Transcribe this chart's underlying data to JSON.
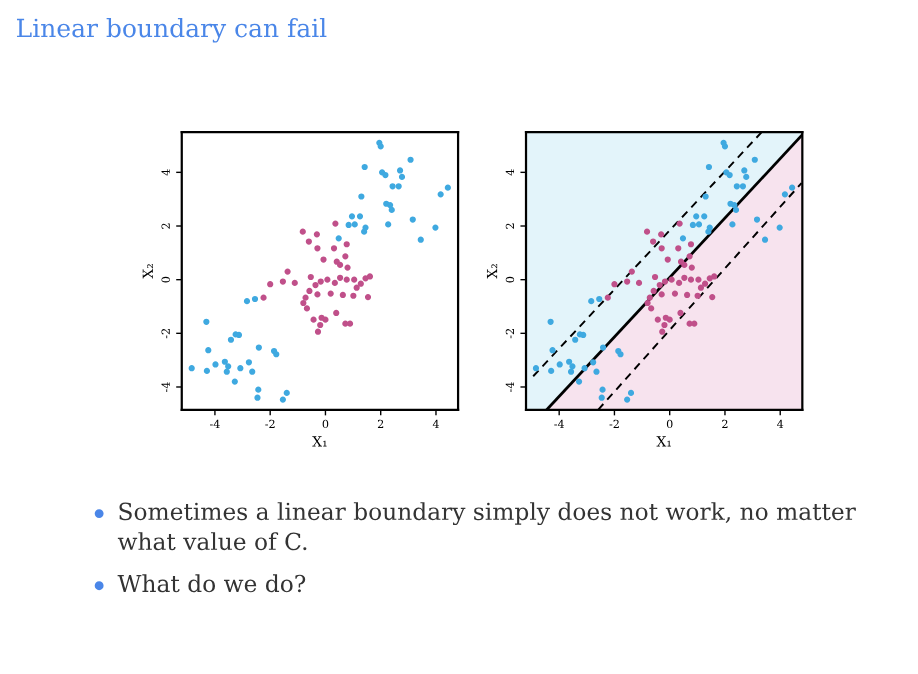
{
  "chart_data": [
    {
      "type": "scatter",
      "title": "Linear boundary can fail",
      "xlabel": "X₁",
      "ylabel": "X₂",
      "xlim": [
        -5.2,
        4.8
      ],
      "ylim": [
        -4.85,
        5.5
      ],
      "xticks": [
        -4,
        -2,
        0,
        2,
        4
      ],
      "yticks": [
        -4,
        -2,
        0,
        2,
        4
      ],
      "marker": "circle",
      "grid": false,
      "legend": false,
      "annotations": [
        "Sometimes a linear boundary simply does not work, no matter what value of C.",
        "What do we do?"
      ],
      "series": [
        {
          "color": "#3fa9e0",
          "x": [
            1.95,
            2.0,
            1.42,
            3.08,
            2.05,
            2.17,
            2.7,
            2.77,
            2.43,
            2.65,
            1.3,
            2.2,
            2.34,
            2.4,
            4.43,
            4.17,
            0.96,
            1.25,
            0.84,
            1.06,
            1.45,
            1.4,
            3.16,
            2.27,
            3.98,
            3.45,
            0.48,
            -4.31,
            -2.84,
            -2.55,
            -4.24,
            -3.42,
            -3.25,
            -3.13,
            -2.41,
            -1.86,
            -1.78,
            -4.84,
            -4.29,
            -3.98,
            -3.64,
            -3.52,
            -3.57,
            -3.28,
            -3.08,
            -2.77,
            -2.65,
            -2.43,
            -2.46,
            -1.54,
            -1.4
          ],
          "values": [
            5.1,
            4.97,
            4.2,
            4.47,
            4.0,
            3.9,
            4.07,
            3.83,
            3.48,
            3.48,
            3.1,
            2.83,
            2.78,
            2.6,
            3.43,
            3.18,
            2.36,
            2.36,
            2.04,
            2.06,
            1.94,
            1.79,
            2.24,
            2.06,
            1.94,
            1.49,
            1.54,
            -1.57,
            -0.8,
            -0.72,
            -2.63,
            -2.24,
            -2.04,
            -2.06,
            -2.53,
            -2.66,
            -2.78,
            -3.3,
            -3.4,
            -3.16,
            -3.06,
            -3.23,
            -3.43,
            -3.8,
            -3.3,
            -3.08,
            -3.43,
            -4.1,
            -4.4,
            -4.47,
            -4.22
          ]
        },
        {
          "color": "#c0508a",
          "x": [
            0.36,
            -0.82,
            -0.31,
            -0.6,
            0.31,
            0.77,
            -0.29,
            -0.07,
            0.41,
            0.53,
            0.72,
            0.8,
            -1.37,
            -1.54,
            -2.0,
            -2.24,
            -0.36,
            -0.17,
            0.07,
            0.34,
            0.53,
            0.77,
            1.04,
            1.28,
            1.61,
            1.45,
            -0.58,
            -0.72,
            -0.29,
            0.19,
            0.63,
            1.01,
            1.13,
            1.54,
            -0.8,
            -0.67,
            -0.43,
            -0.14,
            0.0,
            -0.27,
            -0.19,
            0.72,
            0.89,
            0.39,
            -0.53,
            -1.11
          ],
          "values": [
            2.09,
            1.79,
            1.69,
            1.42,
            1.17,
            1.32,
            1.17,
            0.75,
            0.67,
            0.55,
            0.87,
            0.45,
            0.3,
            -0.07,
            -0.17,
            -0.67,
            -0.2,
            -0.07,
            0.0,
            -0.12,
            0.07,
            0.0,
            0.0,
            -0.15,
            0.12,
            0.05,
            -0.42,
            -0.67,
            -0.55,
            -0.52,
            -0.57,
            -0.6,
            -0.3,
            -0.65,
            -0.87,
            -1.07,
            -1.49,
            -1.42,
            -1.49,
            -1.94,
            -1.69,
            -1.64,
            -1.64,
            -1.24,
            0.1,
            -0.12
          ]
        }
      ]
    },
    {
      "type": "scatter",
      "xlabel": "X₁",
      "ylabel": "X₂",
      "xlim": [
        -5.2,
        4.8
      ],
      "ylim": [
        -4.85,
        5.5
      ],
      "xticks": [
        -4,
        -2,
        0,
        2,
        4
      ],
      "yticks": [
        -4,
        -2,
        0,
        2,
        4
      ],
      "marker": "circle",
      "grid": false,
      "legend": false,
      "series": [
        {
          "color": "#3fa9e0",
          "x": [
            1.95,
            2.0,
            1.42,
            3.08,
            2.05,
            2.17,
            2.7,
            2.77,
            2.43,
            2.65,
            1.3,
            2.2,
            2.34,
            2.4,
            4.43,
            4.17,
            0.96,
            1.25,
            0.84,
            1.06,
            1.45,
            1.4,
            3.16,
            2.27,
            3.98,
            3.45,
            0.48,
            -4.31,
            -2.84,
            -2.55,
            -4.24,
            -3.42,
            -3.25,
            -3.13,
            -2.41,
            -1.86,
            -1.78,
            -4.84,
            -4.29,
            -3.98,
            -3.64,
            -3.52,
            -3.57,
            -3.28,
            -3.08,
            -2.77,
            -2.65,
            -2.43,
            -2.46,
            -1.54,
            -1.4
          ],
          "values": [
            5.1,
            4.97,
            4.2,
            4.47,
            4.0,
            3.9,
            4.07,
            3.83,
            3.48,
            3.48,
            3.1,
            2.83,
            2.78,
            2.6,
            3.43,
            3.18,
            2.36,
            2.36,
            2.04,
            2.06,
            1.94,
            1.79,
            2.24,
            2.06,
            1.94,
            1.49,
            1.54,
            -1.57,
            -0.8,
            -0.72,
            -2.63,
            -2.24,
            -2.04,
            -2.06,
            -2.53,
            -2.66,
            -2.78,
            -3.3,
            -3.4,
            -3.16,
            -3.06,
            -3.23,
            -3.43,
            -3.8,
            -3.3,
            -3.08,
            -3.43,
            -4.1,
            -4.4,
            -4.47,
            -4.22
          ]
        },
        {
          "color": "#c0508a",
          "x": [
            0.36,
            -0.82,
            -0.31,
            -0.6,
            0.31,
            0.77,
            -0.29,
            -0.07,
            0.41,
            0.53,
            0.72,
            0.8,
            -1.37,
            -1.54,
            -2.0,
            -2.24,
            -0.36,
            -0.17,
            0.07,
            0.34,
            0.53,
            0.77,
            1.04,
            1.28,
            1.61,
            1.45,
            -0.58,
            -0.72,
            -0.29,
            0.19,
            0.63,
            1.01,
            1.13,
            1.54,
            -0.8,
            -0.67,
            -0.43,
            -0.14,
            0.0,
            -0.27,
            -0.19,
            0.72,
            0.89,
            0.39,
            -0.53,
            -1.11
          ],
          "values": [
            2.09,
            1.79,
            1.69,
            1.42,
            1.17,
            1.32,
            1.17,
            0.75,
            0.67,
            0.55,
            0.87,
            0.45,
            0.3,
            -0.07,
            -0.17,
            -0.67,
            -0.2,
            -0.07,
            0.0,
            -0.12,
            0.07,
            0.0,
            0.0,
            -0.15,
            0.12,
            0.05,
            -0.42,
            -0.67,
            -0.55,
            -0.52,
            -0.57,
            -0.6,
            -0.3,
            -0.65,
            -0.87,
            -1.07,
            -1.49,
            -1.42,
            -1.49,
            -1.94,
            -1.69,
            -1.64,
            -1.64,
            -1.24,
            0.1,
            -0.12
          ]
        },
        {
          "type": "line",
          "marker": "none",
          "line_style": "solid",
          "color": "#000000",
          "x": [
            -4.45,
            4.8
          ],
          "values": [
            -4.85,
            5.4
          ]
        },
        {
          "type": "line",
          "marker": "none",
          "line_style": "dashed",
          "color": "#000000",
          "x": [
            -4.94,
            3.33
          ],
          "values": [
            -3.6,
            5.5
          ]
        },
        {
          "type": "line",
          "marker": "none",
          "line_style": "dashed",
          "color": "#000000",
          "x": [
            -2.59,
            4.77
          ],
          "values": [
            -4.85,
            3.6
          ]
        }
      ]
    }
  ]
}
